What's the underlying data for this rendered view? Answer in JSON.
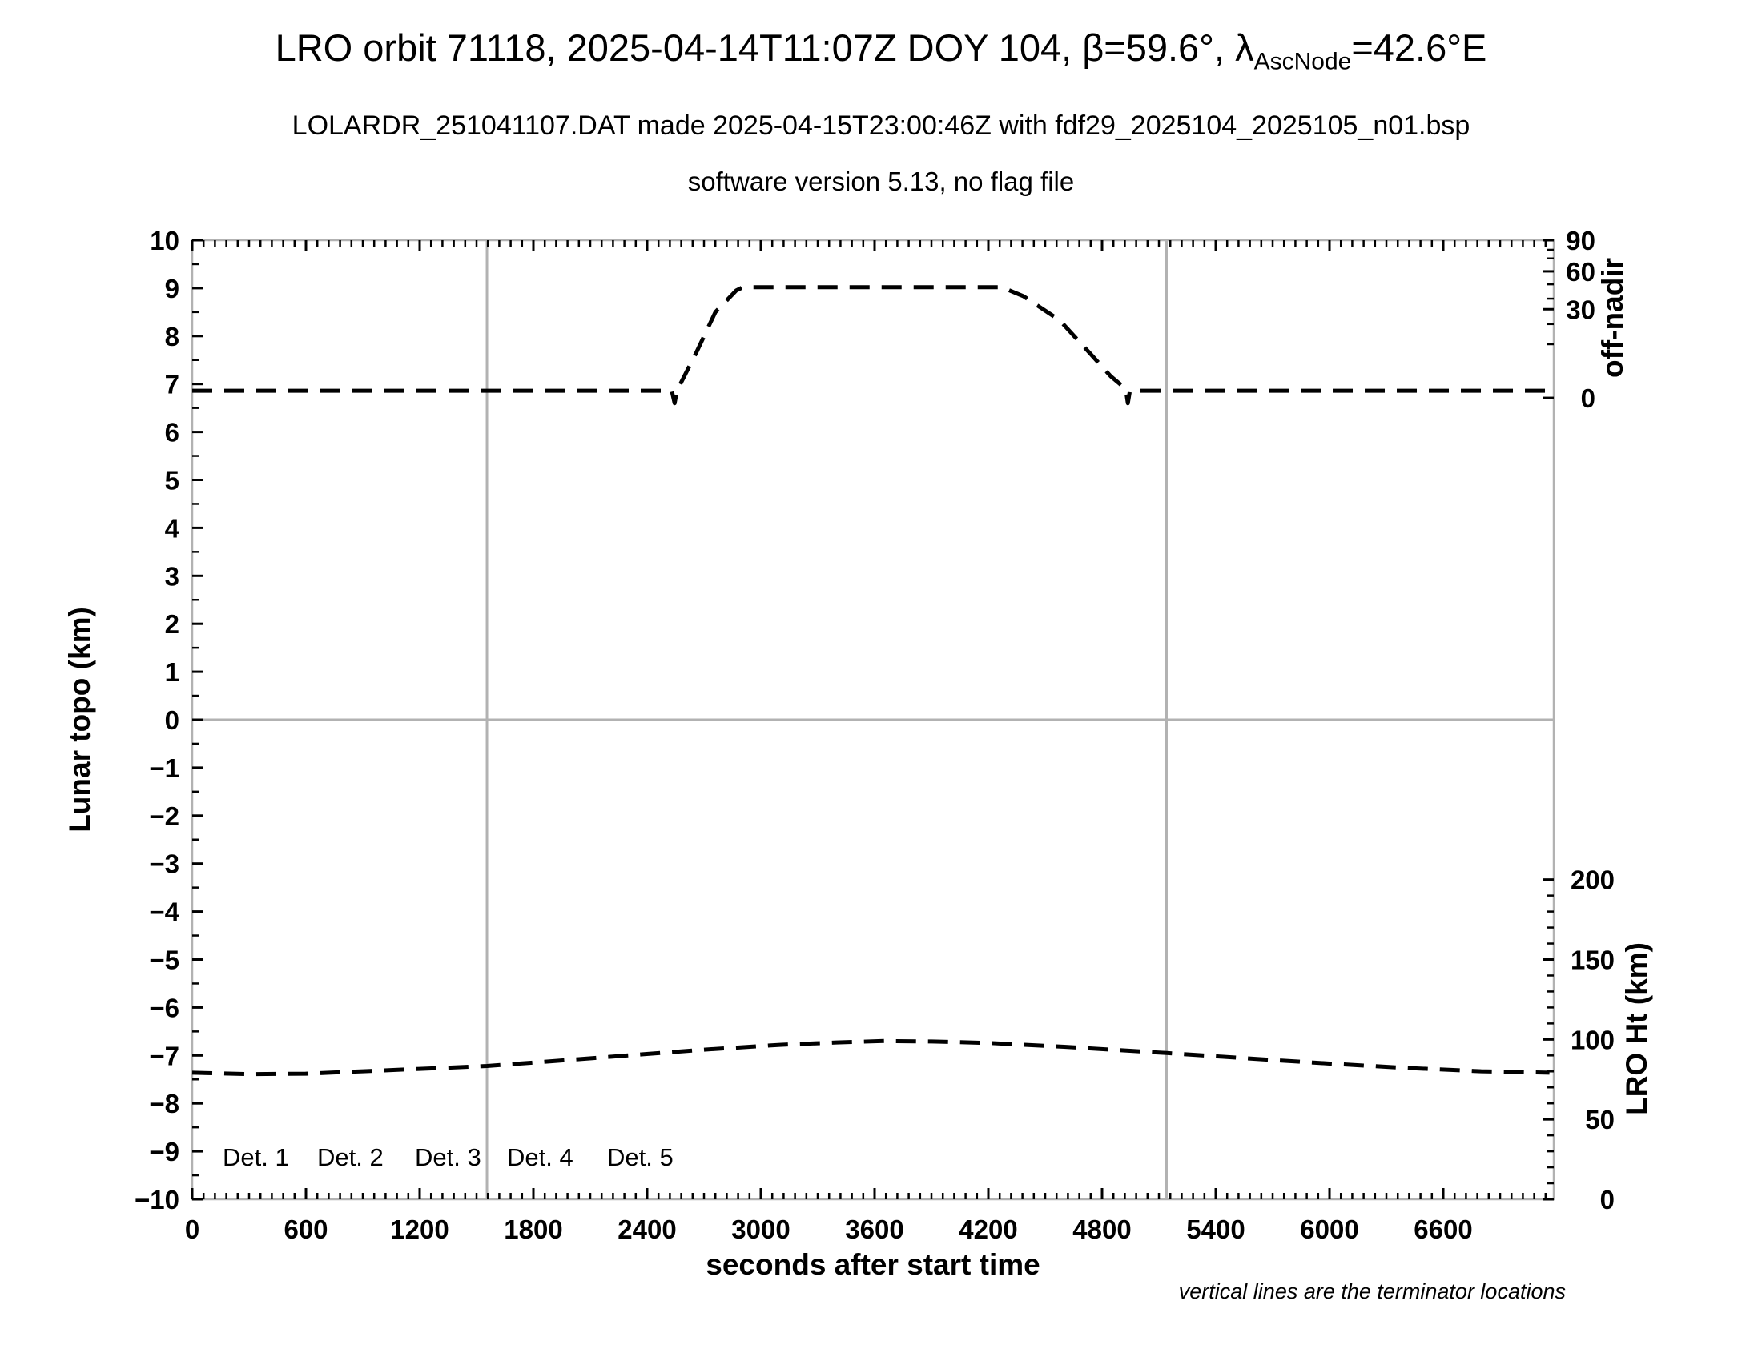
{
  "header": {
    "title_part1": "LRO orbit 71118, 2025-04-14T11:07Z DOY 104, β=59.6°, λ",
    "title_subscript": "AscNode",
    "title_part2": "=42.6°E",
    "subtitle": "LOLARDR_251041107.DAT made 2025-04-15T23:00:46Z with fdf29_2025104_2025105_n01.bsp",
    "subtitle2": "software version 5.13, no flag file"
  },
  "chart_data": {
    "type": "line",
    "title": "LRO orbit 71118, 2025-04-14T11:07Z DOY 104, β=59.6°, λAscNode=42.6°E",
    "x_axis": {
      "label": "seconds after start time",
      "range": [
        0,
        7183
      ],
      "major_tick_s": 600,
      "minor_tick_s": 60,
      "tick_labels": [
        "0",
        "600",
        "1200",
        "1800",
        "2400",
        "3000",
        "3600",
        "4200",
        "4800",
        "5400",
        "6000",
        "6600"
      ]
    },
    "left_axis": {
      "label": "Lunar topo (km)",
      "range": [
        -10,
        10
      ],
      "major_tick": 1,
      "minor_tick": 0.5
    },
    "right_axis_top": {
      "label": "off-nadir",
      "unit": "deg",
      "ticks": [
        {
          "label": "90",
          "topo": 10.0
        },
        {
          "label": "60",
          "topo": 9.35
        },
        {
          "label": "30",
          "topo": 8.56
        },
        {
          "label": "0",
          "topo": 6.71
        }
      ],
      "minor_ticks_topo": [
        9.8,
        9.62,
        9.08,
        8.78,
        8.25,
        7.83
      ]
    },
    "right_axis_bottom": {
      "label": "LRO Ht (km)",
      "range_km": [
        0,
        200
      ],
      "label_step_km": 50,
      "minor_step_km": 10,
      "topo_at_0km": -10,
      "km_per_topo_unit": 30
    },
    "points_units": "x = seconds after start time, y = left-axis (Lunar topo km) plot units",
    "series": [
      {
        "name": "off-nadir-angle",
        "color": "#000000",
        "style": "dashed",
        "axis": "right-top",
        "baseline_deg": 2,
        "plateau_deg": 48,
        "plateau_s": [
          2905,
          4270
        ],
        "points": [
          [
            0,
            6.86
          ],
          [
            600,
            6.86
          ],
          [
            1200,
            6.86
          ],
          [
            1800,
            6.86
          ],
          [
            2400,
            6.86
          ],
          [
            2530,
            6.86
          ],
          [
            2545,
            6.6
          ],
          [
            2557,
            6.86
          ],
          [
            2660,
            7.66
          ],
          [
            2760,
            8.5
          ],
          [
            2870,
            8.95
          ],
          [
            2905,
            9.02
          ],
          [
            3600,
            9.02
          ],
          [
            4271,
            9.02
          ],
          [
            4386,
            8.83
          ],
          [
            4576,
            8.33
          ],
          [
            4732,
            7.66
          ],
          [
            4846,
            7.16
          ],
          [
            4925,
            6.9
          ],
          [
            4936,
            6.6
          ],
          [
            4947,
            6.86
          ],
          [
            5400,
            6.86
          ],
          [
            6300,
            6.86
          ],
          [
            7180,
            6.86
          ]
        ]
      },
      {
        "name": "lro-height",
        "color": "#000000",
        "style": "dashed",
        "axis": "right-bottom",
        "min_km": 78.3,
        "max_km": 98.9,
        "peak_s": 3650,
        "points": [
          [
            0,
            -7.36
          ],
          [
            300,
            -7.39
          ],
          [
            600,
            -7.38
          ],
          [
            900,
            -7.33
          ],
          [
            1200,
            -7.28
          ],
          [
            1555,
            -7.22
          ],
          [
            1900,
            -7.12
          ],
          [
            2300,
            -7.0
          ],
          [
            2700,
            -6.88
          ],
          [
            3100,
            -6.78
          ],
          [
            3400,
            -6.73
          ],
          [
            3650,
            -6.7
          ],
          [
            3900,
            -6.71
          ],
          [
            4200,
            -6.74
          ],
          [
            4600,
            -6.82
          ],
          [
            5140,
            -6.95
          ],
          [
            5600,
            -7.07
          ],
          [
            6000,
            -7.17
          ],
          [
            6400,
            -7.26
          ],
          [
            6800,
            -7.33
          ],
          [
            7160,
            -7.36
          ]
        ]
      }
    ],
    "terminator_lines_x": [
      1555,
      5140
    ],
    "zero_gridline_topo": 0,
    "legend": {
      "items": [
        {
          "label": "Det. 1",
          "color": "#000000"
        },
        {
          "label": "Det. 2",
          "color": "#0000ff"
        },
        {
          "label": "Det. 3",
          "color": "#00dd00"
        },
        {
          "label": "Det. 4",
          "color": "#ffa500"
        },
        {
          "label": "Det. 5",
          "color": "#ff0000"
        }
      ]
    },
    "footnote": "vertical lines are the terminator locations",
    "frame_color": "#b2b2b2"
  }
}
